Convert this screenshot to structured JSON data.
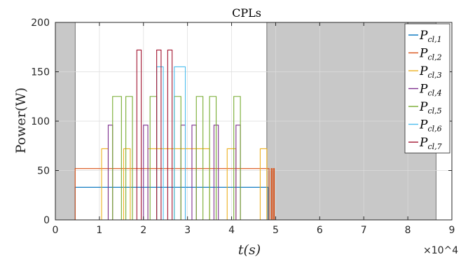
{
  "chart_data": {
    "type": "line",
    "title": "CPLs",
    "xlabel": "t(s)",
    "ylabel": "Power(W)",
    "x_exponent_label": "×10^4",
    "xlim": [
      0,
      9
    ],
    "ylim": [
      0,
      200
    ],
    "x_ticks": [
      0,
      1,
      2,
      3,
      4,
      5,
      6,
      7,
      8,
      9
    ],
    "y_ticks": [
      0,
      50,
      100,
      150,
      200
    ],
    "grid": true,
    "legend_position": "top-right",
    "shaded_regions": [
      {
        "x": [
          0,
          0.45
        ],
        "color": "#c8c8c8"
      },
      {
        "x": [
          4.8,
          8.64
        ],
        "color": "#c8c8c8"
      }
    ],
    "series": [
      {
        "name": "P",
        "sub": "cl,1",
        "color": "#0072BD",
        "points": [
          [
            0.45,
            0
          ],
          [
            0.45,
            33
          ],
          [
            4.83,
            33
          ],
          [
            4.83,
            0
          ],
          [
            9,
            0
          ]
        ]
      },
      {
        "name": "P",
        "sub": "cl,2",
        "color": "#D95319",
        "points": [
          [
            0.45,
            0
          ],
          [
            0.45,
            52
          ],
          [
            4.85,
            52
          ],
          [
            4.85,
            0
          ],
          [
            4.9,
            0
          ],
          [
            4.9,
            52
          ],
          [
            4.92,
            52
          ],
          [
            4.92,
            0
          ],
          [
            4.95,
            0
          ],
          [
            4.95,
            52
          ],
          [
            4.97,
            52
          ],
          [
            4.97,
            0
          ],
          [
            9,
            0
          ]
        ]
      },
      {
        "name": "P",
        "sub": "cl,3",
        "color": "#EDB120",
        "points": [
          [
            0,
            0
          ],
          [
            1.05,
            0
          ],
          [
            1.05,
            72
          ],
          [
            1.2,
            72
          ],
          [
            1.2,
            0
          ],
          [
            1.55,
            0
          ],
          [
            1.55,
            72
          ],
          [
            1.7,
            72
          ],
          [
            1.7,
            0
          ],
          [
            2.1,
            0
          ],
          [
            2.1,
            72
          ],
          [
            3.5,
            72
          ],
          [
            3.5,
            0
          ],
          [
            3.9,
            0
          ],
          [
            3.9,
            72
          ],
          [
            4.1,
            72
          ],
          [
            4.1,
            0
          ],
          [
            4.65,
            0
          ],
          [
            4.65,
            72
          ],
          [
            4.8,
            72
          ],
          [
            4.8,
            0
          ],
          [
            9,
            0
          ]
        ]
      },
      {
        "name": "P",
        "sub": "cl,4",
        "color": "#7E2F8E",
        "points": [
          [
            0,
            0
          ],
          [
            1.2,
            0
          ],
          [
            1.2,
            96
          ],
          [
            1.3,
            96
          ],
          [
            1.3,
            0
          ],
          [
            2.0,
            0
          ],
          [
            2.0,
            96
          ],
          [
            2.1,
            96
          ],
          [
            2.1,
            0
          ],
          [
            2.85,
            0
          ],
          [
            2.85,
            96
          ],
          [
            2.95,
            96
          ],
          [
            2.95,
            0
          ],
          [
            3.1,
            0
          ],
          [
            3.1,
            96
          ],
          [
            3.2,
            96
          ],
          [
            3.2,
            0
          ],
          [
            3.6,
            0
          ],
          [
            3.6,
            96
          ],
          [
            3.7,
            96
          ],
          [
            3.7,
            0
          ],
          [
            4.1,
            0
          ],
          [
            4.1,
            96
          ],
          [
            4.2,
            96
          ],
          [
            4.2,
            0
          ],
          [
            9,
            0
          ]
        ]
      },
      {
        "name": "P",
        "sub": "cl,5",
        "color": "#77AC30",
        "points": [
          [
            0,
            0
          ],
          [
            1.3,
            0
          ],
          [
            1.3,
            125
          ],
          [
            1.5,
            125
          ],
          [
            1.5,
            0
          ],
          [
            1.6,
            0
          ],
          [
            1.6,
            125
          ],
          [
            1.75,
            125
          ],
          [
            1.75,
            0
          ],
          [
            2.15,
            0
          ],
          [
            2.15,
            125
          ],
          [
            2.3,
            125
          ],
          [
            2.3,
            0
          ],
          [
            2.7,
            0
          ],
          [
            2.7,
            125
          ],
          [
            2.85,
            125
          ],
          [
            2.85,
            0
          ],
          [
            3.2,
            0
          ],
          [
            3.2,
            125
          ],
          [
            3.35,
            125
          ],
          [
            3.35,
            0
          ],
          [
            3.5,
            0
          ],
          [
            3.5,
            125
          ],
          [
            3.65,
            125
          ],
          [
            3.65,
            0
          ],
          [
            4.05,
            0
          ],
          [
            4.05,
            125
          ],
          [
            4.2,
            125
          ],
          [
            4.2,
            0
          ],
          [
            9,
            0
          ]
        ]
      },
      {
        "name": "P",
        "sub": "cl,6",
        "color": "#4DBEEE",
        "points": [
          [
            0,
            0
          ],
          [
            2.3,
            0
          ],
          [
            2.3,
            155
          ],
          [
            2.45,
            155
          ],
          [
            2.45,
            0
          ],
          [
            2.7,
            0
          ],
          [
            2.7,
            155
          ],
          [
            2.95,
            155
          ],
          [
            2.95,
            0
          ],
          [
            9,
            0
          ]
        ]
      },
      {
        "name": "P",
        "sub": "cl,7",
        "color": "#A2142F",
        "points": [
          [
            0,
            0
          ],
          [
            1.85,
            0
          ],
          [
            1.85,
            172
          ],
          [
            1.95,
            172
          ],
          [
            1.95,
            0
          ],
          [
            2.3,
            0
          ],
          [
            2.3,
            172
          ],
          [
            2.4,
            172
          ],
          [
            2.4,
            0
          ],
          [
            2.55,
            0
          ],
          [
            2.55,
            172
          ],
          [
            2.65,
            172
          ],
          [
            2.65,
            0
          ],
          [
            9,
            0
          ]
        ]
      }
    ]
  }
}
